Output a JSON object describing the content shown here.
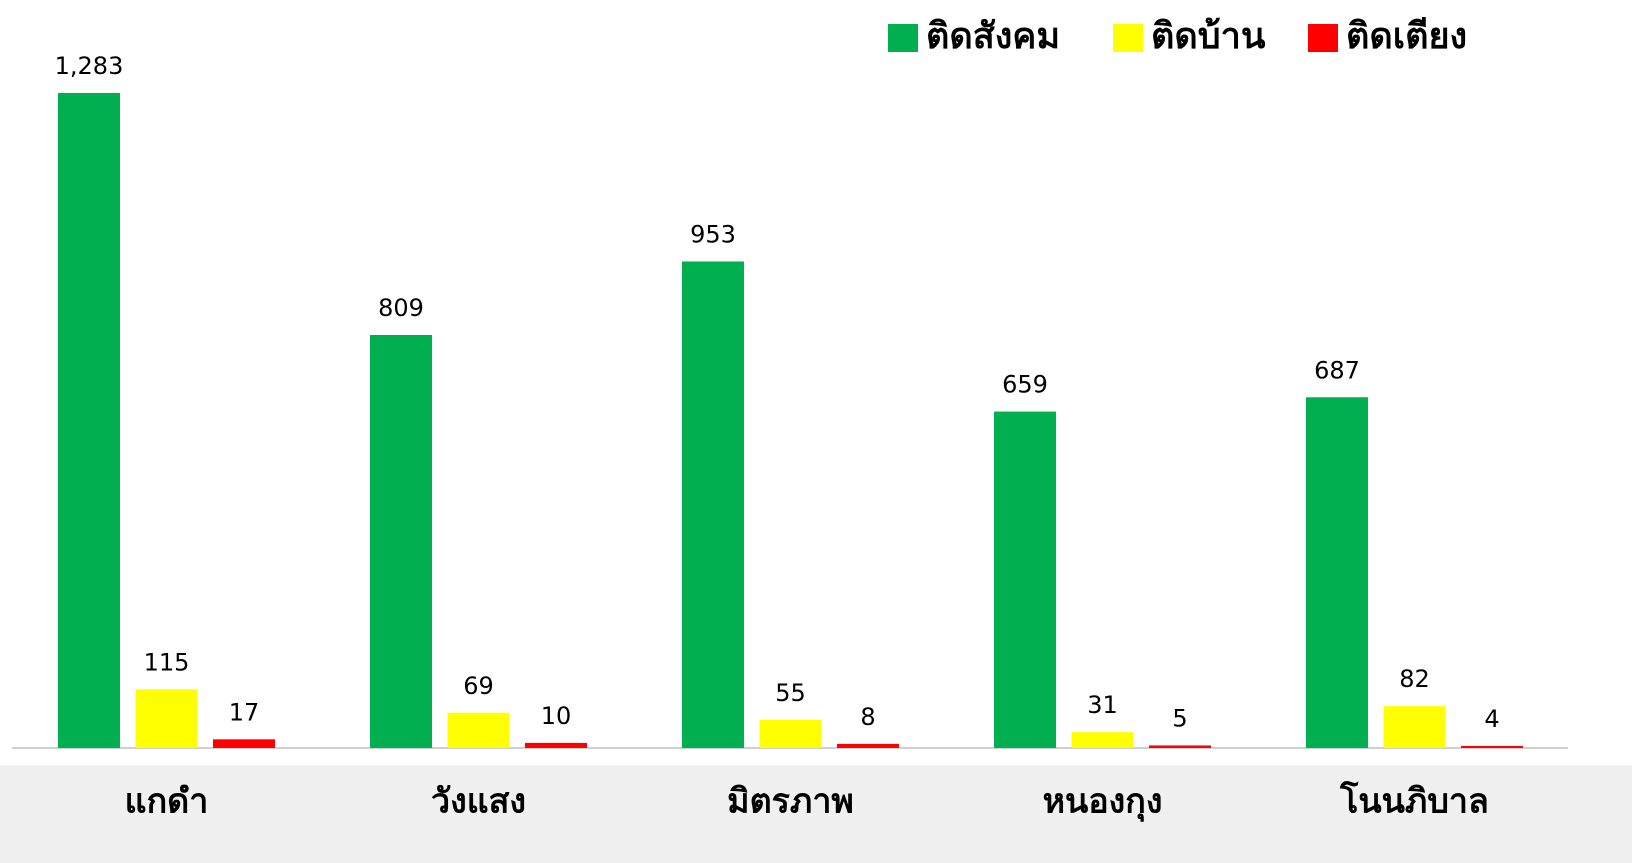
{
  "chart_data": {
    "type": "bar",
    "categories": [
      "แกดำ",
      "วังแสง",
      "มิตรภาพ",
      "หนองกุง",
      "โนนภิบาล"
    ],
    "series": [
      {
        "name": "ติดสังคม",
        "color": "#00b050",
        "values": [
          1283,
          809,
          953,
          659,
          687
        ],
        "value_labels": [
          "1,283",
          "809",
          "953",
          "659",
          "687"
        ]
      },
      {
        "name": "ติดบ้าน",
        "color": "#ffff00",
        "values": [
          115,
          69,
          55,
          31,
          82
        ],
        "value_labels": [
          "115",
          "69",
          "55",
          "31",
          "82"
        ]
      },
      {
        "name": "ติดเตียง",
        "color": "#ff0000",
        "values": [
          17,
          10,
          8,
          5,
          4
        ],
        "value_labels": [
          "17",
          "10",
          "8",
          "5",
          "4"
        ]
      }
    ],
    "legend": "top-right"
  }
}
